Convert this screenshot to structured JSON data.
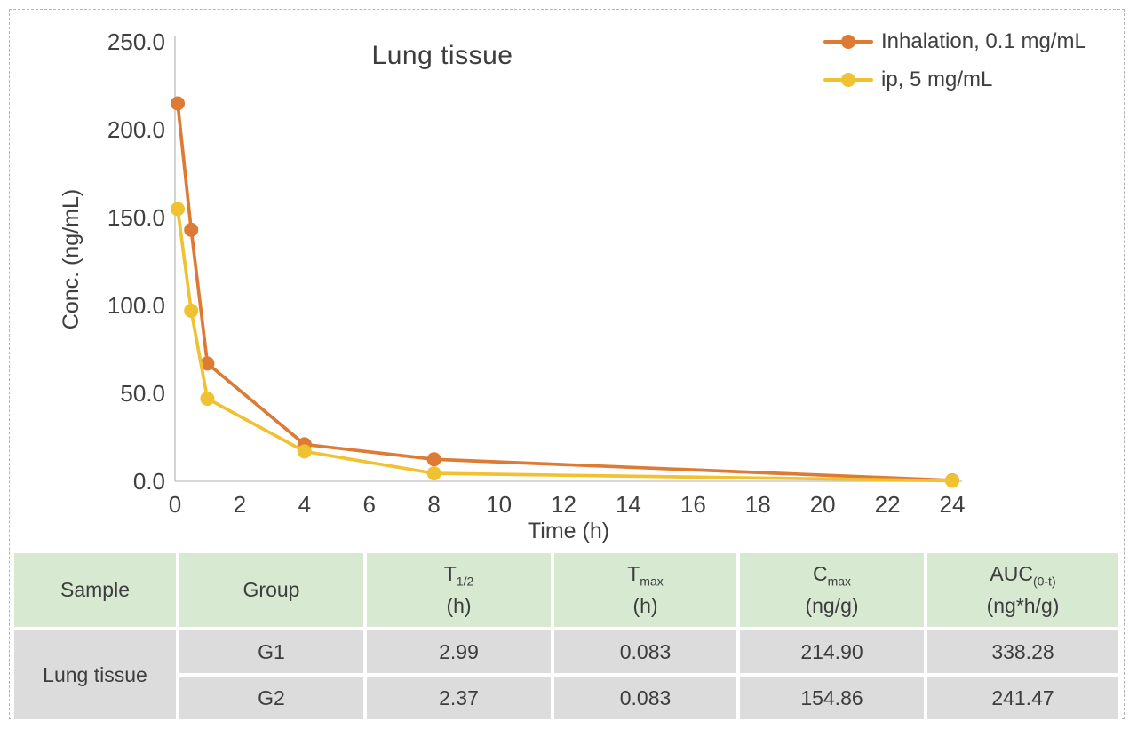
{
  "chart_data": {
    "type": "line",
    "title": "Lung tissue",
    "xlabel": "Time (h)",
    "ylabel": "Conc. (ng/mL)",
    "xlim": [
      0,
      24
    ],
    "ylim": [
      0,
      250
    ],
    "grid": false,
    "legend_position": "top-right",
    "xticks": [
      0,
      2,
      4,
      6,
      8,
      10,
      12,
      14,
      16,
      18,
      20,
      22,
      24
    ],
    "yticks": [
      {
        "value": 250,
        "label": "250.0"
      },
      {
        "value": 200,
        "label": "200.0"
      },
      {
        "value": 150,
        "label": "150.0"
      },
      {
        "value": 100,
        "label": "100.0"
      },
      {
        "value": 50,
        "label": "50.0"
      },
      {
        "value": 0,
        "label": "0.0"
      }
    ],
    "x": [
      0.083,
      0.5,
      1,
      4,
      8,
      24
    ],
    "series": [
      {
        "name": "Inhalation, 0.1 mg/mL",
        "color": "#DD7A33",
        "values": [
          214.9,
          143,
          67,
          21,
          12.5,
          0.5
        ]
      },
      {
        "name": "ip, 5 mg/mL",
        "color": "#F0C232",
        "values": [
          154.86,
          97,
          47,
          17,
          4.5,
          0.3
        ]
      }
    ]
  },
  "table": {
    "header_bg": "#d7e9d1",
    "row_bg": "#dcdcdc",
    "columns": [
      {
        "label": "Sample"
      },
      {
        "label": "Group"
      },
      {
        "main": "T",
        "sub": "1/2",
        "unit": "(h)"
      },
      {
        "main": "T",
        "sub": "max",
        "unit": "(h)"
      },
      {
        "main": "C",
        "sub": "max",
        "unit": "(ng/g)"
      },
      {
        "main": "AUC",
        "sub": "(0-t)",
        "unit": "(ng*h/g)"
      }
    ],
    "sample_label": "Lung tissue",
    "rows": [
      {
        "group": "G1",
        "t_half": "2.99",
        "t_max": "0.083",
        "c_max": "214.90",
        "auc": "338.28"
      },
      {
        "group": "G2",
        "t_half": "2.37",
        "t_max": "0.083",
        "c_max": "154.86",
        "auc": "241.47"
      }
    ]
  }
}
